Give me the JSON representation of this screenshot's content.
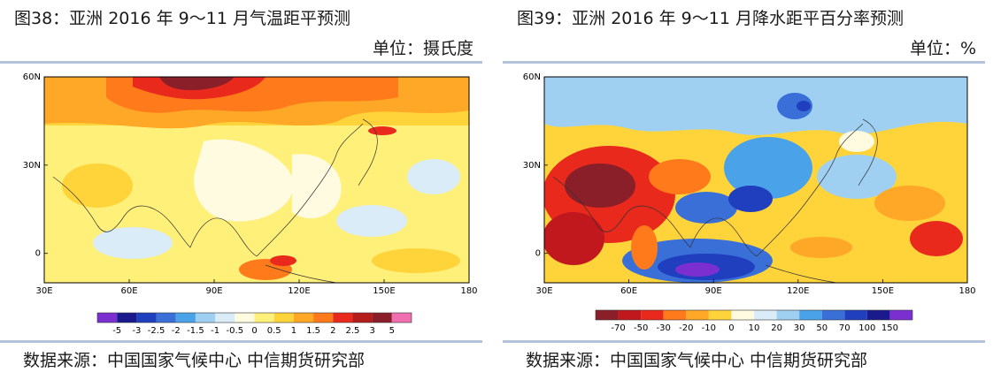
{
  "left": {
    "title": "图38：亚洲 2016 年 9～11 月气温距平预测",
    "unit": "单位：摄氏度",
    "source": "数据来源：中国国家气候中心  中信期货研究部"
  },
  "right": {
    "title": "图39：亚洲 2016 年 9～11 月降水距平百分率预测",
    "unit": "单位：%",
    "source": "数据来源：中国国家气候中心  中信期货研究部"
  },
  "chart_data": [
    {
      "type": "heatmap",
      "title": "图38：亚洲 2016 年 9～11 月气温距平预测",
      "unit": "摄氏度",
      "x_ticks": [
        "30E",
        "60E",
        "90E",
        "120E",
        "150E",
        "180"
      ],
      "y_ticks": [
        "60N",
        "30N",
        "0"
      ],
      "xlim": [
        30,
        180
      ],
      "ylim": [
        -10,
        60
      ],
      "colorbar": {
        "labels": [
          "-5",
          "-3",
          "-2.5",
          "-2",
          "-1.5",
          "-1",
          "-0.5",
          "0",
          "0.5",
          "1",
          "1.5",
          "2",
          "2.5",
          "3",
          "5"
        ],
        "colors": [
          "#7b2fd1",
          "#1a1a8c",
          "#1f3fbf",
          "#3a6fd8",
          "#4aa3e8",
          "#9fd0f2",
          "#d9ecf8",
          "#fffbe0",
          "#fff07a",
          "#ffd43b",
          "#ffa726",
          "#ff7a1a",
          "#e8291c",
          "#b51c1c",
          "#8a1f2a",
          "#f06fb0"
        ]
      }
    },
    {
      "type": "heatmap",
      "title": "图39：亚洲 2016 年 9～11 月降水距平百分率预测",
      "unit": "%",
      "x_ticks": [
        "30E",
        "60E",
        "90E",
        "120E",
        "150E",
        "180"
      ],
      "y_ticks": [
        "60N",
        "30N",
        "0"
      ],
      "xlim": [
        30,
        180
      ],
      "ylim": [
        -10,
        60
      ],
      "colorbar": {
        "labels": [
          "-70",
          "-50",
          "-30",
          "-20",
          "-10",
          "0",
          "10",
          "20",
          "30",
          "50",
          "70",
          "100",
          "150"
        ],
        "colors": [
          "#8a1f2a",
          "#c0181c",
          "#e8291c",
          "#ff7a1a",
          "#ffa726",
          "#ffd43b",
          "#fffbe0",
          "#d9ecf8",
          "#9fd0f2",
          "#4aa3e8",
          "#3a6fd8",
          "#1f3fbf",
          "#1a1a8c",
          "#7b2fd1"
        ]
      }
    }
  ]
}
